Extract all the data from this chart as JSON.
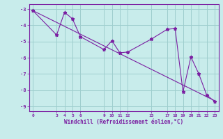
{
  "xlabel": "Windchill (Refroidissement éolien,°C)",
  "bg_color": "#c8eceb",
  "line_color": "#7b1fa2",
  "grid_color": "#9ecece",
  "curve_x": [
    0,
    3,
    4,
    5,
    6,
    9,
    10,
    11,
    12,
    15,
    17,
    18,
    19,
    20,
    21,
    22,
    23
  ],
  "curve_y": [
    -3.1,
    -4.6,
    -3.2,
    -3.6,
    -4.7,
    -5.5,
    -4.95,
    -5.7,
    -5.65,
    -4.85,
    -4.25,
    -4.2,
    -8.1,
    -5.95,
    -7.0,
    -8.3,
    -8.7
  ],
  "trend_x": [
    0,
    23
  ],
  "trend_y": [
    -3.1,
    -8.65
  ],
  "xticks": [
    0,
    3,
    4,
    5,
    6,
    9,
    10,
    11,
    12,
    15,
    17,
    18,
    19,
    20,
    21,
    22,
    23
  ],
  "yticks": [
    -3,
    -4,
    -5,
    -6,
    -7,
    -8,
    -9
  ],
  "xlim": [
    -0.5,
    23.5
  ],
  "ylim": [
    -9.3,
    -2.7
  ]
}
